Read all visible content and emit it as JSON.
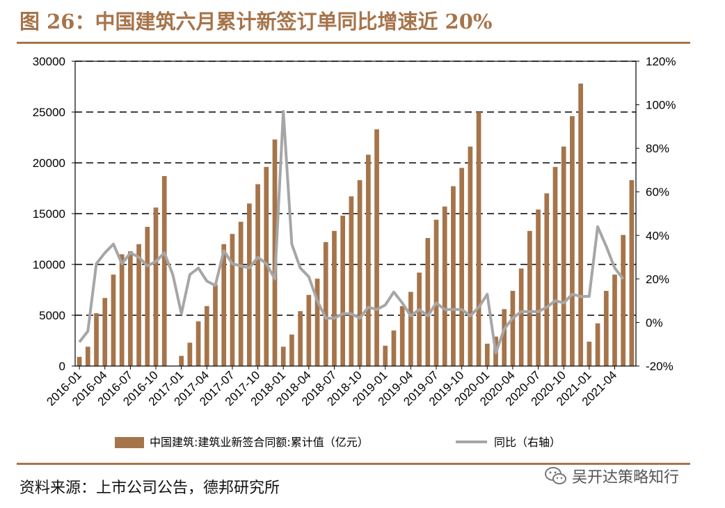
{
  "title": "图 26：中国建筑六月累计新签订单同比增速近 20%",
  "source": "资料来源：上市公司公告，德邦研究所",
  "watermark": {
    "text": "吴开达策略知行",
    "icon": "wechat-icon"
  },
  "colors": {
    "bar": "#a6744a",
    "line": "#a6a6a6",
    "accent": "#a6744a",
    "grid": "#000000"
  },
  "chart_data": {
    "type": "bar",
    "legend_placement": "bottom",
    "grid": "dashed horizontal",
    "x": [
      "2016-01",
      "2016-02",
      "2016-03",
      "2016-04",
      "2016-05",
      "2016-06",
      "2016-07",
      "2016-08",
      "2016-09",
      "2016-10",
      "2016-11",
      "2016-12",
      "2017-01",
      "2017-02",
      "2017-03",
      "2017-04",
      "2017-05",
      "2017-06",
      "2017-07",
      "2017-08",
      "2017-09",
      "2017-10",
      "2017-11",
      "2017-12",
      "2018-01",
      "2018-02",
      "2018-03",
      "2018-04",
      "2018-05",
      "2018-06",
      "2018-07",
      "2018-08",
      "2018-09",
      "2018-10",
      "2018-11",
      "2018-12",
      "2019-01",
      "2019-02",
      "2019-03",
      "2019-04",
      "2019-05",
      "2019-06",
      "2019-07",
      "2019-08",
      "2019-09",
      "2019-10",
      "2019-11",
      "2019-12",
      "2020-01",
      "2020-02",
      "2020-03",
      "2020-04",
      "2020-05",
      "2020-06",
      "2020-07",
      "2020-08",
      "2020-09",
      "2020-10",
      "2020-11",
      "2020-12",
      "2021-01",
      "2021-02",
      "2021-03",
      "2021-04",
      "2021-05",
      "2021-06"
    ],
    "x_tick_labels": [
      "2016-01",
      "2016-04",
      "2016-07",
      "2016-10",
      "2017-01",
      "2017-04",
      "2017-07",
      "2017-10",
      "2018-01",
      "2018-04",
      "2018-07",
      "2018-10",
      "2019-01",
      "2019-04",
      "2019-07",
      "2019-10",
      "2020-01",
      "2020-04",
      "2020-07",
      "2020-10",
      "2021-01",
      "2021-04"
    ],
    "y_left": {
      "min": 0,
      "max": 30000,
      "ticks": [
        "0",
        "5000",
        "10000",
        "15000",
        "20000",
        "25000",
        "30000"
      ]
    },
    "y_right": {
      "min": -20,
      "max": 120,
      "ticks": [
        "-20%",
        "0%",
        "20%",
        "40%",
        "60%",
        "80%",
        "100%",
        "120%"
      ]
    },
    "series": [
      {
        "name": "中国建筑:建筑业新签合同额:累计值（亿元）",
        "type": "bar",
        "axis": "left",
        "values": [
          900,
          1900,
          5200,
          6700,
          9000,
          11000,
          11300,
          12000,
          13700,
          15600,
          18700,
          null,
          1000,
          2300,
          4400,
          5900,
          8000,
          12000,
          13000,
          14200,
          16000,
          17900,
          19600,
          22300,
          1900,
          3100,
          5400,
          7000,
          8600,
          12200,
          13300,
          14800,
          16700,
          18300,
          20800,
          23300,
          2000,
          3500,
          5900,
          7300,
          9200,
          12600,
          14400,
          15700,
          17700,
          19500,
          21600,
          25000,
          2200,
          2900,
          5600,
          7400,
          9600,
          13300,
          15400,
          17000,
          19600,
          21600,
          24600,
          27800,
          2400,
          4200,
          7400,
          9000,
          12900,
          18300
        ]
      },
      {
        "name": "同比（右轴）",
        "type": "line",
        "axis": "right",
        "values": [
          -9,
          -4,
          27,
          32,
          36,
          27,
          32,
          30,
          26,
          28,
          32,
          22,
          4,
          22,
          25,
          19,
          17,
          33,
          27,
          26,
          25,
          30,
          27,
          20,
          97,
          36,
          25,
          21,
          10,
          2,
          2,
          4,
          4,
          2,
          7,
          6,
          8,
          14,
          9,
          3,
          6,
          3,
          9,
          6,
          6,
          6,
          3,
          7,
          13,
          -14,
          -3,
          2,
          5,
          5,
          5,
          7,
          10,
          9,
          13,
          12,
          12,
          44,
          35,
          25,
          20,
          null
        ]
      }
    ]
  }
}
